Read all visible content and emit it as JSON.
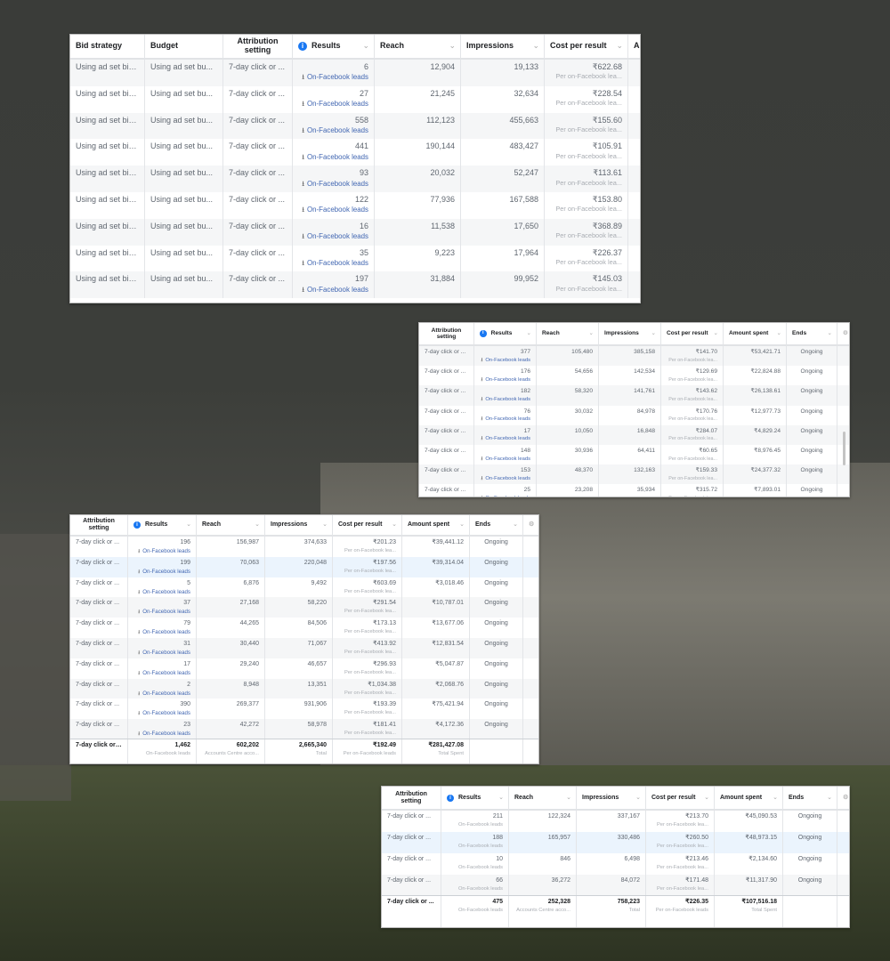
{
  "colors": {
    "link": "#4267b2",
    "info": "#1877f2",
    "selected_row": "#ebf4fd",
    "striped_row": "#f5f6f7"
  },
  "tables": [
    {
      "headers": [
        "Bid strategy",
        "Budget",
        "Attribution setting",
        "Results",
        "Reach",
        "Impressions",
        "Cost per result",
        "A"
      ],
      "results_sub": "On-Facebook leads",
      "cost_sub": "Per on-Facebook lea...",
      "rows": [
        {
          "bid": "Using ad set bid...",
          "budget": "Using ad set bu...",
          "attr": "7-day click or ...",
          "results": "6",
          "reach": "12,904",
          "impressions": "19,133",
          "cost": "₹622.68"
        },
        {
          "bid": "Using ad set bid...",
          "budget": "Using ad set bu...",
          "attr": "7-day click or ...",
          "results": "27",
          "reach": "21,245",
          "impressions": "32,634",
          "cost": "₹228.54"
        },
        {
          "bid": "Using ad set bid...",
          "budget": "Using ad set bu...",
          "attr": "7-day click or ...",
          "results": "558",
          "reach": "112,123",
          "impressions": "455,663",
          "cost": "₹155.60"
        },
        {
          "bid": "Using ad set bid...",
          "budget": "Using ad set bu...",
          "attr": "7-day click or ...",
          "results": "441",
          "reach": "190,144",
          "impressions": "483,427",
          "cost": "₹105.91"
        },
        {
          "bid": "Using ad set bid...",
          "budget": "Using ad set bu...",
          "attr": "7-day click or ...",
          "results": "93",
          "reach": "20,032",
          "impressions": "52,247",
          "cost": "₹113.61"
        },
        {
          "bid": "Using ad set bid...",
          "budget": "Using ad set bu...",
          "attr": "7-day click or ...",
          "results": "122",
          "reach": "77,936",
          "impressions": "167,588",
          "cost": "₹153.80"
        },
        {
          "bid": "Using ad set bid...",
          "budget": "Using ad set bu...",
          "attr": "7-day click or ...",
          "results": "16",
          "reach": "11,538",
          "impressions": "17,650",
          "cost": "₹368.89"
        },
        {
          "bid": "Using ad set bid...",
          "budget": "Using ad set bu...",
          "attr": "7-day click or ...",
          "results": "35",
          "reach": "9,223",
          "impressions": "17,964",
          "cost": "₹226.37"
        },
        {
          "bid": "Using ad set bid...",
          "budget": "Using ad set bu...",
          "attr": "7-day click or ...",
          "results": "197",
          "reach": "31,884",
          "impressions": "99,952",
          "cost": "₹145.03"
        }
      ]
    },
    {
      "headers": [
        "Attribution setting",
        "Results",
        "Reach",
        "Impressions",
        "Cost per result",
        "Amount spent",
        "Ends"
      ],
      "results_sub": "On-Facebook leads",
      "cost_sub": "Per on-Facebook lea...",
      "rows": [
        {
          "attr": "7-day click or ...",
          "results": "377",
          "reach": "105,480",
          "impressions": "385,158",
          "cost": "₹141.70",
          "amount": "₹53,421.71",
          "ends": "Ongoing"
        },
        {
          "attr": "7-day click or ...",
          "results": "176",
          "reach": "54,656",
          "impressions": "142,534",
          "cost": "₹129.69",
          "amount": "₹22,824.88",
          "ends": "Ongoing"
        },
        {
          "attr": "7-day click or ...",
          "results": "182",
          "reach": "58,320",
          "impressions": "141,761",
          "cost": "₹143.62",
          "amount": "₹26,138.61",
          "ends": "Ongoing"
        },
        {
          "attr": "7-day click or ...",
          "results": "76",
          "reach": "30,032",
          "impressions": "84,978",
          "cost": "₹170.76",
          "amount": "₹12,977.73",
          "ends": "Ongoing"
        },
        {
          "attr": "7-day click or ...",
          "results": "17",
          "reach": "10,050",
          "impressions": "16,848",
          "cost": "₹284.07",
          "amount": "₹4,829.24",
          "ends": "Ongoing"
        },
        {
          "attr": "7-day click or ...",
          "results": "148",
          "reach": "30,936",
          "impressions": "64,411",
          "cost": "₹60.65",
          "amount": "₹8,976.45",
          "ends": "Ongoing"
        },
        {
          "attr": "7-day click or ...",
          "results": "153",
          "reach": "48,370",
          "impressions": "132,163",
          "cost": "₹159.33",
          "amount": "₹24,377.32",
          "ends": "Ongoing"
        },
        {
          "attr": "7-day click or ...",
          "results": "25",
          "reach": "23,208",
          "impressions": "35,934",
          "cost": "₹315.72",
          "amount": "₹7,893.01",
          "ends": "Ongoing"
        }
      ]
    },
    {
      "headers": [
        "Attribution setting",
        "Results",
        "Reach",
        "Impressions",
        "Cost per result",
        "Amount spent",
        "Ends"
      ],
      "results_sub": "On-Facebook leads",
      "cost_sub": "Per on-Facebook lea...",
      "rows": [
        {
          "attr": "7-day click or ...",
          "results": "196",
          "reach": "156,987",
          "impressions": "374,633",
          "cost": "₹201.23",
          "amount": "₹39,441.12",
          "ends": "Ongoing"
        },
        {
          "attr": "7-day click or ...",
          "results": "199",
          "reach": "70,063",
          "impressions": "220,048",
          "cost": "₹197.56",
          "amount": "₹39,314.04",
          "ends": "Ongoing"
        },
        {
          "attr": "7-day click or ...",
          "results": "5",
          "reach": "6,876",
          "impressions": "9,492",
          "cost": "₹603.69",
          "amount": "₹3,018.46",
          "ends": "Ongoing"
        },
        {
          "attr": "7-day click or ...",
          "results": "37",
          "reach": "27,168",
          "impressions": "58,220",
          "cost": "₹291.54",
          "amount": "₹10,787.01",
          "ends": "Ongoing"
        },
        {
          "attr": "7-day click or ...",
          "results": "79",
          "reach": "44,265",
          "impressions": "84,506",
          "cost": "₹173.13",
          "amount": "₹13,677.06",
          "ends": "Ongoing"
        },
        {
          "attr": "7-day click or ...",
          "results": "31",
          "reach": "30,440",
          "impressions": "71,067",
          "cost": "₹413.92",
          "amount": "₹12,831.54",
          "ends": "Ongoing"
        },
        {
          "attr": "7-day click or ...",
          "results": "17",
          "reach": "29,240",
          "impressions": "46,657",
          "cost": "₹296.93",
          "amount": "₹5,047.87",
          "ends": "Ongoing"
        },
        {
          "attr": "7-day click or ...",
          "results": "2",
          "reach": "8,948",
          "impressions": "13,351",
          "cost": "₹1,034.38",
          "amount": "₹2,068.76",
          "ends": "Ongoing"
        },
        {
          "attr": "7-day click or ...",
          "results": "390",
          "reach": "269,377",
          "impressions": "931,906",
          "cost": "₹193.39",
          "amount": "₹75,421.94",
          "ends": "Ongoing"
        },
        {
          "attr": "7-day click or ...",
          "results": "23",
          "reach": "42,272",
          "impressions": "58,978",
          "cost": "₹181.41",
          "amount": "₹4,172.36",
          "ends": "Ongoing"
        }
      ],
      "footer": {
        "attr": "7-day click or ...",
        "results": "1,462",
        "results_sub": "On-Facebook leads",
        "reach": "602,202",
        "reach_sub": "Accounts Centre acco...",
        "impressions": "2,665,340",
        "impressions_sub": "Total",
        "cost": "₹192.49",
        "cost_sub": "Per on-Facebook leads",
        "amount": "₹281,427.08",
        "amount_sub": "Total Spent"
      }
    },
    {
      "headers": [
        "Attribution setting",
        "Results",
        "Reach",
        "Impressions",
        "Cost per result",
        "Amount spent",
        "Ends"
      ],
      "results_sub": "On-Facebook leads",
      "cost_sub": "Per on-Facebook lea...",
      "rows": [
        {
          "attr": "7-day click or ...",
          "results": "211",
          "reach": "122,324",
          "impressions": "337,167",
          "cost": "₹213.70",
          "amount": "₹45,090.53",
          "ends": "Ongoing"
        },
        {
          "attr": "7-day click or ...",
          "results": "188",
          "reach": "165,957",
          "impressions": "330,486",
          "cost": "₹260.50",
          "amount": "₹48,973.15",
          "ends": "Ongoing"
        },
        {
          "attr": "7-day click or ...",
          "results": "10",
          "reach": "846",
          "impressions": "6,498",
          "cost": "₹213.46",
          "amount": "₹2,134.60",
          "ends": "Ongoing"
        },
        {
          "attr": "7-day click or ...",
          "results": "66",
          "reach": "36,272",
          "impressions": "84,072",
          "cost": "₹171.48",
          "amount": "₹11,317.90",
          "ends": "Ongoing"
        }
      ],
      "footer": {
        "attr": "7-day click or ...",
        "results": "475",
        "results_sub": "On-Facebook leads",
        "reach": "252,328",
        "reach_sub": "Accounts Centre acco...",
        "impressions": "758,223",
        "impressions_sub": "Total",
        "cost": "₹226.35",
        "cost_sub": "Per on-Facebook leads",
        "amount": "₹107,516.18",
        "amount_sub": "Total Spent"
      }
    }
  ]
}
